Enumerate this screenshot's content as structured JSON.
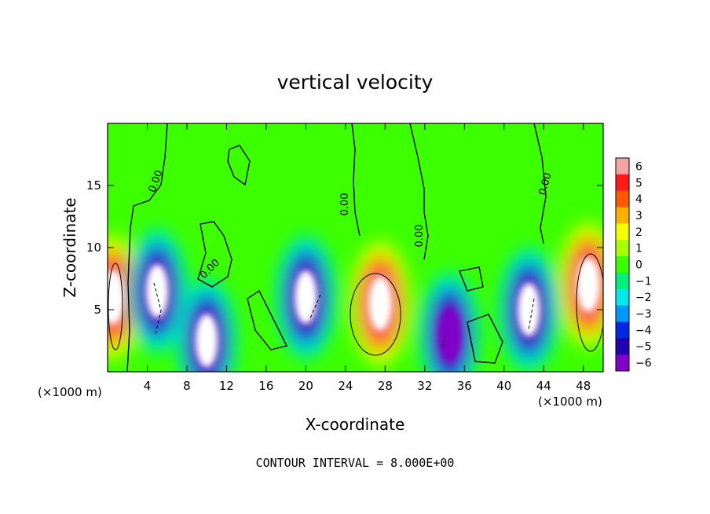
{
  "chart_data": {
    "type": "heatmap",
    "title": "vertical velocity",
    "xlabel": "X-coordinate",
    "ylabel": "Z-coordinate",
    "x_units_left": "(×1000 m)",
    "x_units_right": "(×1000 m)",
    "footnote": "CONTOUR INTERVAL = 8.000E+00",
    "xlim": [
      0,
      50
    ],
    "ylim": [
      0,
      20
    ],
    "x_ticks": [
      4,
      8,
      12,
      16,
      20,
      24,
      28,
      32,
      36,
      40,
      44,
      48
    ],
    "x_tick_labels": [
      "4",
      "8",
      "12",
      "16",
      "20",
      "24",
      "28",
      "32",
      "36",
      "40",
      "44",
      "48"
    ],
    "y_ticks": [
      5,
      10,
      15
    ],
    "y_tick_labels": [
      "5",
      "10",
      "15"
    ],
    "colorbar": {
      "ticks": [
        6,
        5,
        4,
        3,
        2,
        1,
        0,
        -1,
        -2,
        -3,
        -4,
        -5,
        -6
      ],
      "tick_labels": [
        "6",
        "5",
        "4",
        "3",
        "2",
        "1",
        "0",
        "−1",
        "−2",
        "−3",
        "−4",
        "−5",
        "−6"
      ],
      "range": [
        -6,
        6
      ],
      "colors": [
        "#f5a3a3",
        "#ff1a1a",
        "#ff5a00",
        "#ffb000",
        "#f5ff00",
        "#a8ff00",
        "#3cff00",
        "#00f07c",
        "#00e8e8",
        "#0098ff",
        "#0028e0",
        "#2200b0",
        "#8000c8"
      ]
    },
    "contour_label": "0.00",
    "updraft_cores": [
      {
        "x": 0.5,
        "z": 6,
        "w": 8
      },
      {
        "x": 27.5,
        "z": 5.5,
        "w": 9
      },
      {
        "x": 48.5,
        "z": 7,
        "w": 9
      },
      {
        "x": 5,
        "z": 6.5,
        "w": -7
      },
      {
        "x": 10,
        "z": 2.5,
        "w": -7
      },
      {
        "x": 20,
        "z": 6,
        "w": -7
      },
      {
        "x": 34.5,
        "z": 3,
        "w": -6
      },
      {
        "x": 42.5,
        "z": 5,
        "w": -7
      }
    ]
  }
}
